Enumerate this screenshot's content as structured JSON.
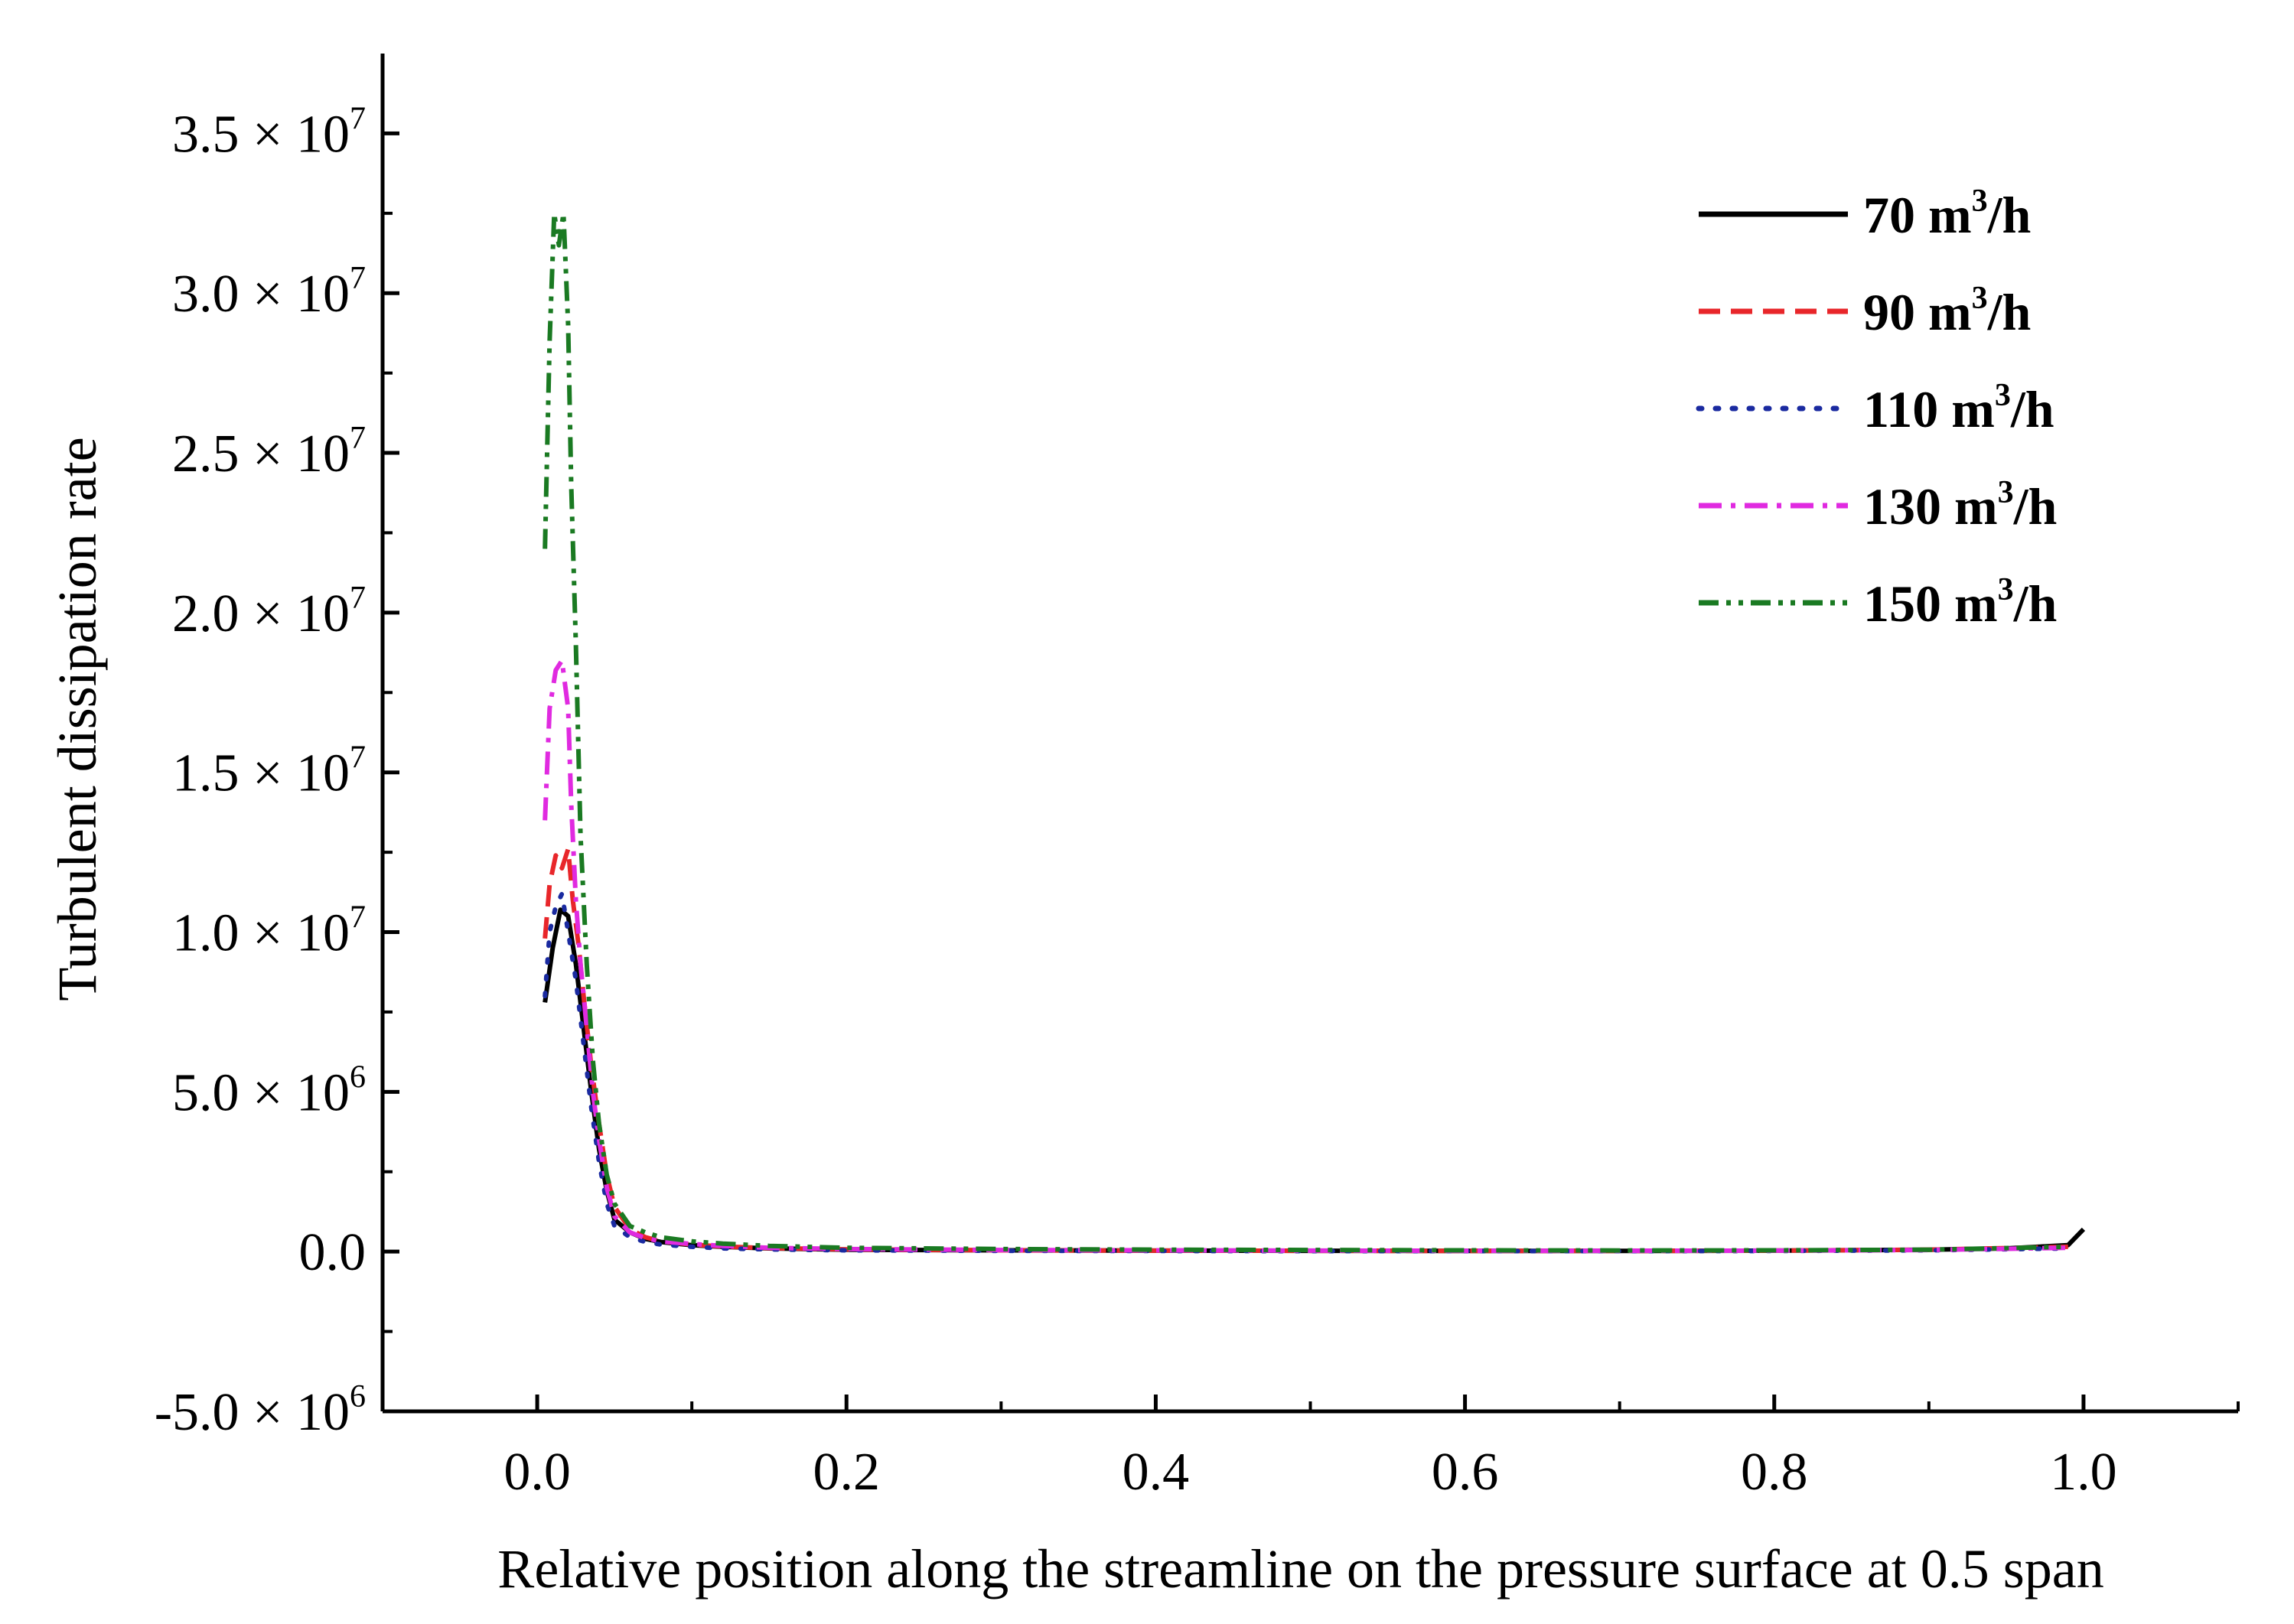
{
  "chart_data": {
    "type": "line",
    "title": "",
    "xlabel": "Relative position along the streamline on the pressure surface at 0.5 span",
    "ylabel": "Turbulent dissipation rate",
    "xlim": [
      -0.1,
      1.1
    ],
    "ylim": [
      -5000000,
      37500000
    ],
    "x_ticks": [
      {
        "value": 0.0,
        "label": "0.0"
      },
      {
        "value": 0.2,
        "label": "0.2"
      },
      {
        "value": 0.4,
        "label": "0.4"
      },
      {
        "value": 0.6,
        "label": "0.6"
      },
      {
        "value": 0.8,
        "label": "0.8"
      },
      {
        "value": 1.0,
        "label": "1.0"
      }
    ],
    "y_ticks": [
      {
        "value": -5000000,
        "mantissa": "-5.0",
        "times": "×",
        "base": "10",
        "exp": "6"
      },
      {
        "value": 0,
        "mantissa": "0.0",
        "times": "",
        "base": "",
        "exp": ""
      },
      {
        "value": 5000000,
        "mantissa": "5.0",
        "times": "×",
        "base": "10",
        "exp": "6"
      },
      {
        "value": 10000000,
        "mantissa": "1.0",
        "times": "×",
        "base": "10",
        "exp": "7"
      },
      {
        "value": 15000000,
        "mantissa": "1.5",
        "times": "×",
        "base": "10",
        "exp": "7"
      },
      {
        "value": 20000000,
        "mantissa": "2.0",
        "times": "×",
        "base": "10",
        "exp": "7"
      },
      {
        "value": 25000000,
        "mantissa": "2.5",
        "times": "×",
        "base": "10",
        "exp": "7"
      },
      {
        "value": 30000000,
        "mantissa": "3.0",
        "times": "×",
        "base": "10",
        "exp": "7"
      },
      {
        "value": 35000000,
        "mantissa": "3.5",
        "times": "×",
        "base": "10",
        "exp": "7"
      }
    ],
    "x_minor_ticks": [
      -0.1,
      0.1,
      0.3,
      0.5,
      0.7,
      0.9,
      1.1
    ],
    "y_minor_ticks": [
      -2500000,
      2500000,
      7500000,
      12500000,
      17500000,
      22500000,
      27500000,
      32500000
    ],
    "grid": false,
    "legend_position": "top-right",
    "series": [
      {
        "name": "70 m³/h",
        "label_main": "70 m",
        "label_exp": "3",
        "label_tail": "/h",
        "color": "#000000",
        "dash": "solid",
        "x": [
          0.005,
          0.01,
          0.015,
          0.02,
          0.025,
          0.03,
          0.035,
          0.04,
          0.045,
          0.05,
          0.06,
          0.07,
          0.08,
          0.1,
          0.12,
          0.15,
          0.2,
          0.3,
          0.4,
          0.5,
          0.6,
          0.7,
          0.8,
          0.9,
          0.95,
          0.99,
          1.0
        ],
        "y": [
          7800000,
          9500000,
          10700000,
          10500000,
          9000000,
          7000000,
          5000000,
          3200000,
          1900000,
          1000000,
          600000,
          400000,
          300000,
          200000,
          150000,
          100000,
          60000,
          40000,
          30000,
          25000,
          20000,
          20000,
          30000,
          60000,
          100000,
          200000,
          700000
        ]
      },
      {
        "name": "90 m³/h",
        "label_main": "90 m",
        "label_exp": "3",
        "label_tail": "/h",
        "color": "#e8262a",
        "dash": "dashed",
        "x": [
          0.005,
          0.008,
          0.012,
          0.016,
          0.02,
          0.023,
          0.027,
          0.03,
          0.035,
          0.04,
          0.045,
          0.05,
          0.06,
          0.07,
          0.08,
          0.1,
          0.12,
          0.15,
          0.2,
          0.3,
          0.4,
          0.5,
          0.6,
          0.7,
          0.8,
          0.9,
          0.99
        ],
        "y": [
          9800000,
          11500000,
          12400000,
          12000000,
          12600000,
          11000000,
          9500000,
          8000000,
          5800000,
          4000000,
          2400000,
          1400000,
          700000,
          450000,
          320000,
          220000,
          160000,
          110000,
          70000,
          40000,
          30000,
          25000,
          20000,
          20000,
          30000,
          60000,
          150000
        ]
      },
      {
        "name": "110 m³/h",
        "label_main": "110 m",
        "label_exp": "3",
        "label_tail": "/h",
        "color": "#1a2aa0",
        "dash": "dotted",
        "x": [
          0.005,
          0.008,
          0.012,
          0.016,
          0.02,
          0.025,
          0.03,
          0.035,
          0.04,
          0.045,
          0.05,
          0.06,
          0.07,
          0.08,
          0.1,
          0.12,
          0.15,
          0.2,
          0.3,
          0.4,
          0.5,
          0.6,
          0.7,
          0.8,
          0.9,
          0.99
        ],
        "y": [
          8000000,
          10000000,
          10800000,
          11200000,
          10000000,
          8500000,
          6500000,
          4500000,
          2800000,
          1500000,
          800000,
          450000,
          300000,
          220000,
          150000,
          100000,
          70000,
          40000,
          25000,
          20000,
          15000,
          15000,
          15000,
          20000,
          40000,
          100000
        ]
      },
      {
        "name": "130 m³/h",
        "label_main": "130 m",
        "label_exp": "3",
        "label_tail": "/h",
        "color": "#e02ae0",
        "dash": "dashdot",
        "x": [
          0.005,
          0.008,
          0.012,
          0.016,
          0.02,
          0.022,
          0.025,
          0.028,
          0.032,
          0.036,
          0.04,
          0.045,
          0.05,
          0.06,
          0.07,
          0.08,
          0.1,
          0.12,
          0.15,
          0.2,
          0.3,
          0.4,
          0.5,
          0.6,
          0.7,
          0.8,
          0.9,
          0.99
        ],
        "y": [
          13500000,
          17000000,
          18200000,
          18500000,
          17000000,
          14000000,
          11000000,
          9000000,
          7000000,
          5000000,
          3500000,
          2000000,
          1100000,
          600000,
          420000,
          320000,
          240000,
          180000,
          120000,
          80000,
          50000,
          40000,
          30000,
          25000,
          25000,
          30000,
          50000,
          120000
        ]
      },
      {
        "name": "150 m³/h",
        "label_main": "150 m",
        "label_exp": "3",
        "label_tail": "/h",
        "color": "#1a7a22",
        "dash": "dashdotdot",
        "x": [
          0.005,
          0.008,
          0.011,
          0.014,
          0.017,
          0.02,
          0.022,
          0.025,
          0.028,
          0.032,
          0.036,
          0.04,
          0.045,
          0.05,
          0.06,
          0.07,
          0.08,
          0.1,
          0.12,
          0.15,
          0.2,
          0.3,
          0.4,
          0.5,
          0.6,
          0.7,
          0.8,
          0.9,
          0.99
        ],
        "y": [
          22000000,
          28500000,
          32500000,
          31500000,
          32500000,
          29000000,
          24000000,
          19000000,
          13000000,
          9000000,
          6000000,
          4000000,
          2400000,
          1500000,
          800000,
          600000,
          450000,
          320000,
          250000,
          180000,
          120000,
          80000,
          60000,
          50000,
          40000,
          35000,
          40000,
          60000,
          150000
        ]
      }
    ]
  }
}
